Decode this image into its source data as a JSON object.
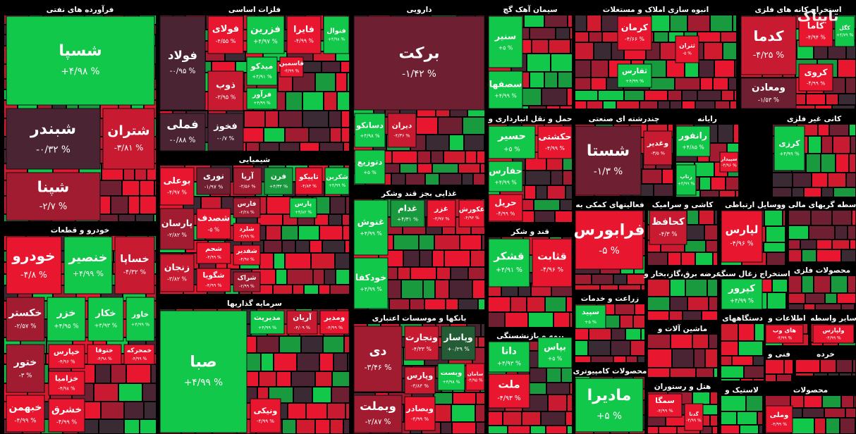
{
  "watermark": "تابناک",
  "chart_data": {
    "type": "treemap",
    "sectors": [
      {
        "name": "فرآورده های نفتی",
        "labels": [
          "شسپا",
          "شبندر",
          "شتران",
          "شپنا"
        ],
        "values": [
          4.98,
          -0.32,
          -3.81,
          -2.7
        ],
        "value_labels": [
          "+۴/۹۸ %",
          "-۰/۳۲ %",
          "-۳/۸۱ %",
          "-۲/۷ %"
        ]
      },
      {
        "name": "خودرو و قطعات",
        "labels": [
          "خودرو",
          "خنصیر",
          "خساپا",
          "خکستر",
          "خزر",
          "خکار",
          "خاور",
          "ختور",
          "خپارس",
          "ختوقا",
          "خمحرکه",
          "خزامیا",
          "خبهمن",
          "خشرق"
        ],
        "values": [
          -4.8,
          4.99,
          -4.32,
          -2.57,
          4.95,
          4.93,
          4.99,
          -3,
          -4.96,
          -4.98,
          -4.99,
          -4.98,
          -4.99,
          -4.99
        ],
        "value_labels": [
          "-۴/۸ %",
          "+۴/۹۹ %",
          "-۴/۳۲ %",
          "-۲/۵۷ %",
          "+۴/۹۵ %",
          "+۴/۹۳ %",
          "+۴/۹۹ %",
          "-۳ %",
          "-۴/۹۶ %",
          "-۴/۹۸ %",
          "-۴/۹۹ %",
          "-۴/۹۸ %",
          "-۴/۹۹ %",
          "-۴/۹۹ %"
        ]
      },
      {
        "name": "فلزات اساسی",
        "labels": [
          "فولاد",
          "فملی",
          "فولای",
          "فزرین",
          "فایرا",
          "فنوال",
          "ذوب",
          "میدکو",
          "فاسمین",
          "فرآور",
          "فخوز"
        ],
        "values": [
          -0.95,
          -0.88,
          -4.55,
          4.97,
          -4.99,
          4.98,
          -3.95,
          4.91,
          -4.99,
          4.99,
          -0.7
        ],
        "value_labels": [
          "-۰/۹۵ %",
          "-۰/۸۸ %",
          "-۴/۵۵ %",
          "+۴/۹۷ %",
          "-۴/۹۹ %",
          "+۴/۹۸ %",
          "-۳/۹۵ %",
          "+۴/۹۱ %",
          "-۴/۹۹ %",
          "+۴/۹۹ %",
          "-۰/۷ %"
        ]
      },
      {
        "name": "شیمیایی",
        "labels": [
          "بوعلی",
          "نوری",
          "آریا",
          "فرن",
          "تاپیکو",
          "شکربن",
          "پارسان",
          "شصدف",
          "فارس",
          "پارس",
          "شلرد",
          "شفدیر",
          "شراک",
          "زنجان",
          "شجم",
          "شگویا"
        ],
        "values": [
          -4.97,
          -1.97,
          -2.56,
          4.34,
          -4.83,
          4.99,
          -2.82,
          -5,
          -2.28,
          4.82,
          -4.99,
          -4.97,
          -2.99,
          -3.82,
          -4.99,
          -4.99
        ],
        "value_labels": [
          "-۴/۹۷ %",
          "-۱/۹۷ %",
          "-۲/۵۶ %",
          "+۴/۳۴ %",
          "-۴/۸۳ %",
          "+۴/۹۹ %",
          "-۲/۸۲ %",
          "-۵ %",
          "-۲/۲۸ %",
          "+۴/۸۲ %",
          "-۴/۹۹ %",
          "-۴/۹۷ %",
          "-۲/۹۹ %",
          "-۳/۸۲ %",
          "-۴/۹۹ %",
          "-۴/۹۹ %"
        ]
      },
      {
        "name": "سرمایه گذاریها",
        "labels": [
          "صبا",
          "مدیریت",
          "آریان",
          "ومدیر",
          "ونیکی"
        ],
        "values": [
          4.99,
          4.99,
          -4.09,
          -4.99,
          -4.99
        ],
        "value_labels": [
          "+۴/۹۹ %",
          "+۴/۹۹ %",
          "-۴/۰۹ %",
          "-۴/۹۹ %",
          "-۴/۹۹ %"
        ]
      },
      {
        "name": "دارویی",
        "labels": [
          "برکت",
          "دسانکو",
          "دیران",
          "دتوزیع"
        ],
        "values": [
          -1.42,
          4.98,
          -4.36,
          5
        ],
        "value_labels": [
          "-۱/۴۲ %",
          "+۴/۹۸ %",
          "-۴/۳۶ %",
          "+۵ %"
        ]
      },
      {
        "name": "غذایی بجز قند وشکر",
        "labels": [
          "غنوش",
          "غدام",
          "غزر",
          "غکورش",
          "خودکفا"
        ],
        "values": [
          4.99,
          4.31,
          -4.97,
          -4.93,
          4.99
        ],
        "value_labels": [
          "+۴/۹۹ %",
          "+۴/۳۱ %",
          "-۴/۹۷ %",
          "-۴/۹۳ %",
          "+۴/۹۹ %"
        ]
      },
      {
        "name": "بانکها و موسسات اعتباری",
        "labels": [
          "دی",
          "ونجارت",
          "وپاسار",
          "وبست",
          "سامان",
          "وپارس",
          "وبملت",
          "وبصادر"
        ],
        "values": [
          -3.46,
          -4.33,
          0.29,
          4.98,
          -4.95,
          -3.84,
          -2.87,
          -4.99
        ],
        "value_labels": [
          "-۳/۴۶ %",
          "-۴/۳۳ %",
          "+۰/۲۹ %",
          "+۴/۹۸ %",
          "-۴/۹۵ %",
          "-۳/۸۴ %",
          "-۲/۸۷ %",
          "-۴/۹۹ %"
        ]
      },
      {
        "name": "سیمان آهک گچ",
        "labels": [
          "سنیر",
          "سصفها"
        ],
        "values": [
          5,
          4.99
        ],
        "value_labels": [
          "+۵ %",
          "+۴/۹۹ %"
        ]
      },
      {
        "name": "حمل و نقل انبارداری و",
        "labels": [
          "حسیر",
          "حکشتی",
          "حفارس",
          "حریل"
        ],
        "values": [
          5,
          -4.99,
          4.99,
          -4.99
        ],
        "value_labels": [
          "+۵ %",
          "-۴/۹۹ %",
          "+۴/۹۹ %",
          "-۴/۹۹ %"
        ]
      },
      {
        "name": "قند و شکر",
        "labels": [
          "قشکر",
          "قثابت"
        ],
        "values": [
          4.91,
          -4.96
        ],
        "value_labels": [
          "+۴/۹۱ %",
          "-۴/۹۶ %"
        ]
      },
      {
        "name": "بیمه و بازنشستگی",
        "labels": [
          "دانا",
          "بپاس",
          "ملت"
        ],
        "values": [
          4.93,
          5,
          -4.93
        ],
        "value_labels": [
          "+۴/۹۳ %",
          "+۵ %",
          "-۴/۹۳ %"
        ]
      },
      {
        "name": "انبوه سازی املاک و مستغلات",
        "labels": [
          "کرمان",
          "ثتران",
          "ثفارس"
        ],
        "values": [
          -4.66,
          -5,
          4.99
        ],
        "value_labels": [
          "-۴/۶۶ %",
          "-۵ %",
          "+۴/۹۹ %"
        ]
      },
      {
        "name": "چندرشته ای صنعتی",
        "labels": [
          "شستا",
          "وغدیر"
        ],
        "values": [
          -1.3,
          -3.5
        ],
        "value_labels": [
          "-۱/۳ %",
          "-۳/۵ %"
        ]
      },
      {
        "name": "فعالیتهای کمکی به",
        "labels": [
          "فرابورس"
        ],
        "values": [
          -5
        ],
        "value_labels": [
          "-۵ %"
        ]
      },
      {
        "name": "زراعت و خدمات",
        "labels": [
          "سپید"
        ],
        "values": [
          5
        ],
        "value_labels": [
          "+۵ %"
        ]
      },
      {
        "name": "محصولات کامپیوتری",
        "labels": [
          "مادیرا"
        ],
        "values": [
          5
        ],
        "value_labels": [
          "+۵ %"
        ]
      },
      {
        "name": "رایانه",
        "labels": [
          "رانفور",
          "رتاپ",
          "سپیدار"
        ],
        "values": [
          4.85,
          4.99,
          -4.96
        ],
        "value_labels": [
          "+۴/۸۵ %",
          "+۴/۹۹ %",
          "-۴/۹۶ %"
        ]
      },
      {
        "name": "کاشی و سرامیک",
        "labels": [
          "کحافظ"
        ],
        "values": [
          -4.3
        ],
        "value_labels": [
          "-۴/۳ %"
        ]
      },
      {
        "name": "وسایل ارتباطی",
        "labels": [
          "لپارس"
        ],
        "values": [
          -4.96
        ],
        "value_labels": [
          "-۴/۹۶ %"
        ]
      },
      {
        "name": "استخراج کانه های فلزی",
        "labels": [
          "کدما",
          "کاما",
          "کگل",
          "کروی",
          "ومعادن"
        ],
        "values": [
          -4.25,
          -4.94,
          4.79,
          -4.99,
          -1.53
        ],
        "value_labels": [
          "-۴/۲۵ %",
          "-۴/۹۴ %",
          "+۴/۷۹ %",
          "-۴/۹۹ %",
          "-۱/۵۳ %"
        ]
      },
      {
        "name": "کانی غیر فلزی",
        "labels": [
          "کرزی"
        ],
        "values": [
          4.99
        ],
        "value_labels": [
          "+۴/۹۹ %"
        ]
      },
      {
        "name": "واسطه گریهای مالی و",
        "labels": [],
        "values": [],
        "value_labels": []
      },
      {
        "name": "محصولات فلزی",
        "labels": [],
        "values": [],
        "value_labels": []
      },
      {
        "name": "استخراج زغال سنگ",
        "labels": [
          "کپرور"
        ],
        "values": [
          4.99
        ],
        "value_labels": [
          "+۴/۹۹ %"
        ]
      },
      {
        "name": "عرضه برق،گاز،بخار و",
        "labels": [],
        "values": [],
        "value_labels": []
      },
      {
        "name": "ماشین آلات و",
        "labels": [],
        "values": [],
        "value_labels": []
      },
      {
        "name": "هتل و رستوران",
        "labels": [
          "سمگا",
          "گدنا"
        ],
        "values": [
          -4.99,
          -4.99
        ],
        "value_labels": [
          "-۴/۹۹ %",
          "-۴/۹۹ %"
        ]
      },
      {
        "name": "دستگاههای",
        "labels": [],
        "values": [],
        "value_labels": []
      },
      {
        "name": "اطلاعات و",
        "labels": [
          "های وب"
        ],
        "values": [
          -4.99
        ],
        "value_labels": [
          "-۴/۹۹ %"
        ]
      },
      {
        "name": "سایر واسطه",
        "labels": [
          "ولپارس"
        ],
        "values": [
          -4.99
        ],
        "value_labels": [
          "-۴/۹۹ %"
        ]
      },
      {
        "name": "فنی و",
        "labels": [],
        "values": [],
        "value_labels": []
      },
      {
        "name": "خرده",
        "labels": [],
        "values": [],
        "value_labels": []
      },
      {
        "name": "لاستیک و",
        "labels": [],
        "values": [],
        "value_labels": []
      },
      {
        "name": "محصولات",
        "labels": [
          "وملی"
        ],
        "values": [
          -4.99
        ],
        "value_labels": [
          "-۴/۹۹ %"
        ]
      }
    ]
  }
}
